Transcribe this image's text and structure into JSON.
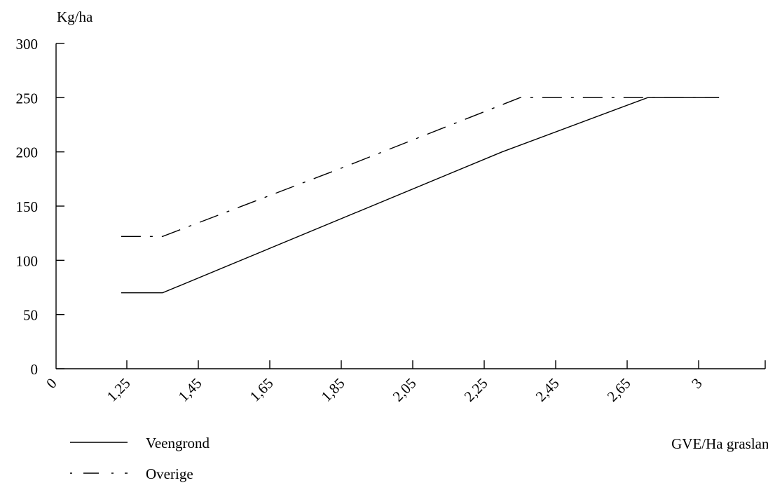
{
  "chart_data": {
    "type": "line",
    "ylabel": "Kg/ha",
    "xlabel": "GVE/Ha grasland",
    "x_ticks": [
      "0",
      "1,25",
      "1,45",
      "1,65",
      "1,85",
      "2,05",
      "2,25",
      "2,45",
      "2,65",
      "3"
    ],
    "y_ticks": [
      "0",
      "50",
      "100",
      "150",
      "200",
      "250",
      "300"
    ],
    "ylim": [
      0,
      300
    ],
    "grid": false,
    "legend_position": "bottom-left",
    "series": [
      {
        "name": "Veengrond",
        "style": "solid",
        "points": [
          {
            "x": 1.15,
            "y": 70
          },
          {
            "x": 1.35,
            "y": 70
          },
          {
            "x": 2.3,
            "y": 200
          },
          {
            "x": 2.75,
            "y": 250
          },
          {
            "x": 3.1,
            "y": 250
          }
        ]
      },
      {
        "name": "Overige",
        "style": "dash-dot",
        "points": [
          {
            "x": 1.15,
            "y": 122
          },
          {
            "x": 1.35,
            "y": 122
          },
          {
            "x": 1.85,
            "y": 185
          },
          {
            "x": 2.35,
            "y": 250
          },
          {
            "x": 3.1,
            "y": 250
          }
        ]
      }
    ]
  }
}
